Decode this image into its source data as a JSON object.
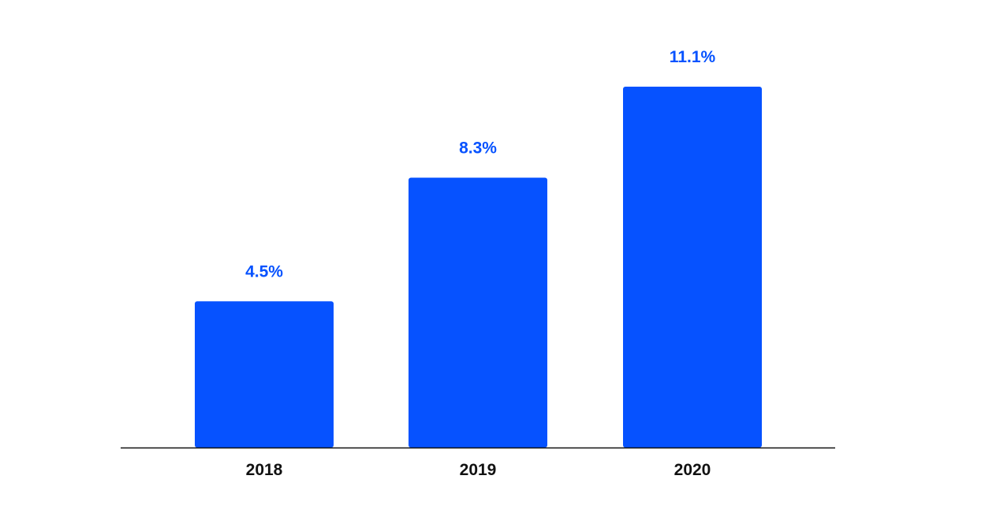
{
  "chart_data": {
    "type": "bar",
    "categories": [
      "2018",
      "2019",
      "2020"
    ],
    "values": [
      4.5,
      8.3,
      11.1
    ],
    "value_labels": [
      "4.5%",
      "8.3%",
      "11.1%"
    ],
    "unit": "%",
    "title": "",
    "xlabel": "",
    "ylabel": "",
    "ylim": [
      0,
      11.1
    ],
    "grid": false,
    "legend": "none",
    "bar_color": "#0652FF",
    "label_color": "#0652FF",
    "axis_color": "#111111"
  }
}
